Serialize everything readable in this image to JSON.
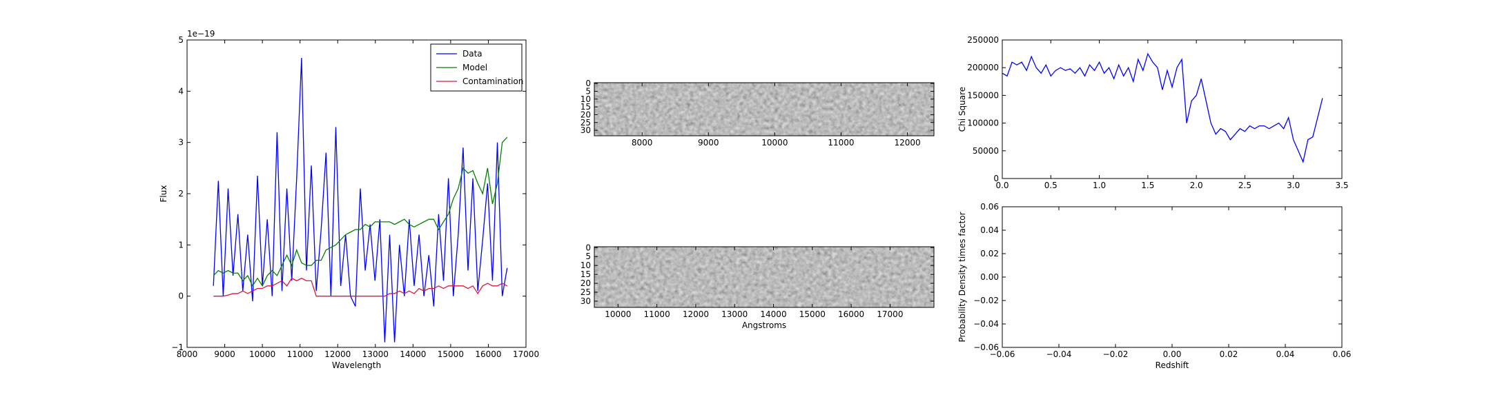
{
  "chart_data": [
    {
      "type": "line",
      "xlabel": "Wavelength",
      "ylabel": "Flux",
      "offset_text": "1e−19",
      "xlim": [
        8000,
        17000
      ],
      "xticks": [
        8000,
        9000,
        10000,
        11000,
        12000,
        13000,
        14000,
        15000,
        16000,
        17000
      ],
      "ylim": [
        -1,
        5
      ],
      "yticks": [
        {
          "value": -1,
          "label": "−1"
        },
        0,
        1,
        2,
        3,
        4,
        5
      ],
      "legend": "upper right",
      "x": [
        8700,
        8830,
        8960,
        9090,
        9220,
        9350,
        9480,
        9610,
        9740,
        9870,
        10000,
        10130,
        10260,
        10390,
        10520,
        10650,
        10780,
        10910,
        11040,
        11170,
        11300,
        11430,
        11560,
        11690,
        11820,
        11950,
        12080,
        12210,
        12340,
        12470,
        12600,
        12730,
        12860,
        12990,
        13120,
        13250,
        13380,
        13510,
        13640,
        13770,
        13900,
        14030,
        14160,
        14290,
        14420,
        14550,
        14680,
        14810,
        14940,
        15070,
        15200,
        15330,
        15460,
        15590,
        15720,
        15850,
        15980,
        16110,
        16240,
        16370,
        16500
      ],
      "series": [
        {
          "name": "Data",
          "color": "#0000ff",
          "values": [
            0.2,
            2.25,
            0.0,
            2.1,
            0.4,
            1.6,
            0.1,
            1.2,
            -0.1,
            2.35,
            0.2,
            1.5,
            0.0,
            3.2,
            0.1,
            2.1,
            0.3,
            2.3,
            4.65,
            0.5,
            2.55,
            0.1,
            1.3,
            2.8,
            0.0,
            3.3,
            0.2,
            1.2,
            0.0,
            -0.2,
            2.1,
            0.5,
            1.4,
            0.3,
            1.5,
            -0.9,
            1.2,
            -0.9,
            1.0,
            0.0,
            1.5,
            0.2,
            1.2,
            0.0,
            0.8,
            -0.2,
            1.6,
            0.3,
            2.3,
            0.0,
            1.2,
            2.9,
            0.5,
            2.3,
            0.1,
            1.1,
            2.2,
            0.3,
            3.0,
            0.0,
            0.55
          ]
        },
        {
          "name": "Model",
          "color": "#008000",
          "values": [
            0.4,
            0.5,
            0.45,
            0.5,
            0.45,
            0.45,
            0.3,
            0.4,
            0.2,
            0.35,
            0.2,
            0.4,
            0.5,
            0.4,
            0.6,
            0.8,
            0.6,
            0.9,
            0.65,
            0.6,
            0.6,
            0.7,
            0.7,
            0.9,
            0.95,
            1.0,
            1.1,
            1.2,
            1.25,
            1.3,
            1.3,
            1.4,
            1.35,
            1.45,
            1.45,
            1.45,
            1.45,
            1.4,
            1.45,
            1.5,
            1.4,
            1.35,
            1.4,
            1.45,
            1.5,
            1.5,
            1.3,
            1.45,
            1.6,
            1.9,
            2.1,
            2.5,
            2.4,
            2.45,
            2.2,
            2.0,
            2.5,
            1.8,
            2.2,
            3.0,
            3.1
          ]
        },
        {
          "name": "Contamination",
          "color": "#dc143c",
          "values": [
            0,
            0,
            0,
            0.02,
            0.05,
            0.05,
            0.1,
            0.05,
            0.1,
            0.15,
            0.15,
            0.2,
            0.2,
            0.25,
            0.3,
            0.2,
            0.35,
            0.3,
            0.35,
            0.3,
            0.3,
            0,
            0,
            0,
            0,
            0,
            0,
            0,
            0,
            0,
            0,
            0,
            0,
            0,
            0,
            0,
            0.05,
            0.05,
            0.1,
            0.05,
            0.1,
            0.05,
            0.15,
            0.1,
            0.15,
            0.15,
            0.2,
            0.15,
            0.2,
            0.2,
            0.2,
            0.2,
            0.15,
            0.2,
            0.05,
            0.2,
            0.25,
            0.2,
            0.2,
            0.25,
            0.2
          ]
        }
      ]
    },
    {
      "type": "image",
      "xlim": [
        7280,
        12400
      ],
      "xticks": [
        8000,
        9000,
        10000,
        11000,
        12000
      ],
      "ylim": [
        33.5,
        -0.5
      ],
      "yticks": [
        0,
        5,
        10,
        15,
        20,
        25,
        30
      ]
    },
    {
      "type": "image",
      "xlabel": "Angstroms",
      "xlim": [
        9390,
        18130
      ],
      "xticks": [
        10000,
        11000,
        12000,
        13000,
        14000,
        15000,
        16000,
        17000
      ],
      "ylim": [
        33.5,
        -0.5
      ],
      "yticks": [
        0,
        5,
        10,
        15,
        20,
        25,
        30
      ]
    },
    {
      "type": "line",
      "ylabel": "Chi Square",
      "xlim": [
        0,
        3.5
      ],
      "xticks": [
        {
          "value": 0,
          "label": "0.0"
        },
        0.5,
        {
          "value": 1,
          "label": "1.0"
        },
        1.5,
        {
          "value": 2,
          "label": "2.0"
        },
        2.5,
        {
          "value": 3,
          "label": "3.0"
        },
        3.5
      ],
      "ylim": [
        0,
        250000
      ],
      "yticks": [
        0,
        50000,
        100000,
        150000,
        200000,
        250000
      ],
      "x": [
        0,
        0.05,
        0.1,
        0.15,
        0.2,
        0.25,
        0.3,
        0.35,
        0.4,
        0.45,
        0.5,
        0.55,
        0.6,
        0.65,
        0.7,
        0.75,
        0.8,
        0.85,
        0.9,
        0.95,
        1.0,
        1.05,
        1.1,
        1.15,
        1.2,
        1.25,
        1.3,
        1.35,
        1.4,
        1.45,
        1.5,
        1.55,
        1.6,
        1.65,
        1.7,
        1.75,
        1.8,
        1.85,
        1.9,
        1.95,
        2.0,
        2.05,
        2.1,
        2.15,
        2.2,
        2.25,
        2.3,
        2.35,
        2.4,
        2.45,
        2.5,
        2.55,
        2.6,
        2.65,
        2.7,
        2.75,
        2.8,
        2.85,
        2.9,
        2.95,
        3.0,
        3.05,
        3.1,
        3.15,
        3.2,
        3.25,
        3.3
      ],
      "series": [
        {
          "color": "#0000ff",
          "values": [
            190000,
            185000,
            210000,
            205000,
            210000,
            195000,
            220000,
            200000,
            190000,
            205000,
            185000,
            195000,
            200000,
            195000,
            198000,
            190000,
            200000,
            185000,
            205000,
            195000,
            210000,
            190000,
            200000,
            180000,
            205000,
            185000,
            200000,
            175000,
            215000,
            195000,
            225000,
            210000,
            200000,
            160000,
            195000,
            165000,
            200000,
            215000,
            100000,
            140000,
            150000,
            180000,
            140000,
            100000,
            80000,
            90000,
            85000,
            70000,
            80000,
            90000,
            85000,
            95000,
            90000,
            95000,
            95000,
            90000,
            95000,
            100000,
            90000,
            110000,
            70000,
            50000,
            30000,
            70000,
            75000,
            110000,
            145000
          ]
        }
      ]
    },
    {
      "type": "line",
      "xlabel": "Redshift",
      "ylabel": "Probability Density times factor",
      "xlim": [
        -0.06,
        0.06
      ],
      "xticks": [
        {
          "value": -0.06,
          "label": "−0.06"
        },
        {
          "value": -0.04,
          "label": "−0.04"
        },
        {
          "value": -0.02,
          "label": "−0.02"
        },
        {
          "value": 0,
          "label": "0.00"
        },
        {
          "value": 0.02,
          "label": "0.02"
        },
        {
          "value": 0.04,
          "label": "0.04"
        },
        {
          "value": 0.06,
          "label": "0.06"
        }
      ],
      "ylim": [
        -0.06,
        0.06
      ],
      "yticks": [
        {
          "value": -0.06,
          "label": "−0.06"
        },
        {
          "value": -0.04,
          "label": "−0.04"
        },
        {
          "value": -0.02,
          "label": "−0.02"
        },
        {
          "value": 0,
          "label": "0.00"
        },
        {
          "value": 0.02,
          "label": "0.02"
        },
        {
          "value": 0.04,
          "label": "0.04"
        },
        {
          "value": 0.06,
          "label": "0.06"
        }
      ],
      "series": []
    }
  ]
}
